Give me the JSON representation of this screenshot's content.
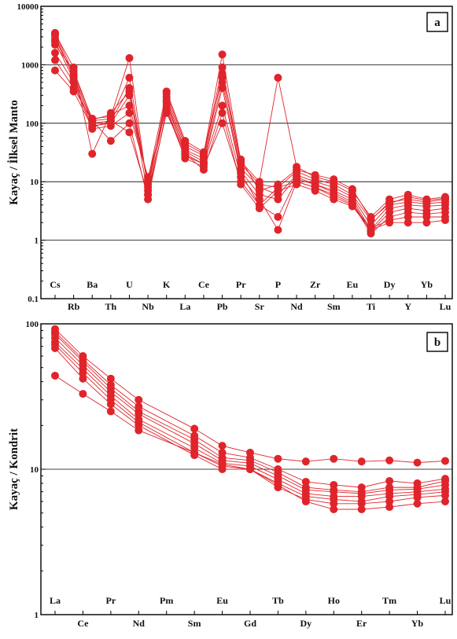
{
  "chart_data": [
    {
      "panel": "a",
      "type": "line",
      "ylabel": "Kayaç / İlksel Manto",
      "yscale": "log",
      "ylim": [
        0.1,
        10000
      ],
      "yticks": [
        "0.1",
        "1",
        "10",
        "100",
        "1000",
        "10000"
      ],
      "grid_y": [
        1,
        10,
        100,
        1000
      ],
      "color": "#e0242b",
      "categories": [
        "Cs",
        "Rb",
        "Ba",
        "Th",
        "U",
        "Nb",
        "K",
        "La",
        "Ce",
        "Pb",
        "Pr",
        "Sr",
        "P",
        "Nd",
        "Zr",
        "Sm",
        "Eu",
        "Ti",
        "Dy",
        "Y",
        "Yb",
        "Lu"
      ],
      "series": [
        {
          "values": [
            3500,
            700,
            120,
            130,
            1300,
            7,
            320,
            45,
            30,
            1500,
            22,
            10,
            600,
            18,
            12,
            10,
            7,
            2.5,
            5,
            6,
            5,
            5.5
          ]
        },
        {
          "values": [
            3200,
            600,
            110,
            120,
            600,
            8,
            280,
            40,
            28,
            900,
            20,
            9,
            8,
            15,
            11,
            9,
            6,
            2.2,
            4.5,
            5,
            4.5,
            5
          ]
        },
        {
          "values": [
            2800,
            650,
            100,
            110,
            400,
            9,
            250,
            35,
            25,
            700,
            17,
            8,
            6,
            13,
            10,
            8,
            5.5,
            1.8,
            4,
            4.5,
            4.2,
            4.5
          ]
        },
        {
          "values": [
            2500,
            550,
            90,
            100,
            300,
            10,
            200,
            33,
            22,
            500,
            15,
            6,
            5,
            12,
            9,
            7,
            5,
            1.5,
            3.5,
            4,
            3.8,
            4
          ]
        },
        {
          "values": [
            3400,
            900,
            30,
            150,
            350,
            6,
            230,
            30,
            20,
            400,
            14,
            4,
            2.5,
            11,
            9,
            6.5,
            4.5,
            1.4,
            3,
            3.5,
            3.2,
            3.5
          ]
        },
        {
          "values": [
            1600,
            500,
            80,
            90,
            150,
            12,
            180,
            28,
            20,
            200,
            12,
            5,
            1.5,
            10,
            8,
            6,
            4.2,
            1.3,
            2.5,
            3,
            2.8,
            3
          ]
        },
        {
          "values": [
            1200,
            400,
            110,
            50,
            100,
            5,
            170,
            25,
            18,
            100,
            10,
            4,
            8,
            10,
            8,
            5.5,
            4,
            1.6,
            2.2,
            2.5,
            2.5,
            2.5
          ]
        },
        {
          "values": [
            800,
            350,
            85,
            110,
            70,
            6,
            150,
            30,
            16,
            150,
            9,
            3.5,
            7,
            9,
            7,
            5,
            3.8,
            1.5,
            2,
            2,
            2,
            2.2
          ]
        },
        {
          "values": [
            2200,
            800,
            115,
            140,
            200,
            11,
            350,
            50,
            32,
            600,
            24,
            7,
            9,
            16,
            13,
            11,
            7.5,
            2.3,
            4.2,
            5.5,
            4.8,
            5.2
          ]
        }
      ],
      "label": "a"
    },
    {
      "panel": "b",
      "type": "line",
      "ylabel": "Kayaç / Kondrit",
      "yscale": "log",
      "ylim": [
        1,
        100
      ],
      "yticks": [
        "1",
        "10",
        "100"
      ],
      "grid_y": [
        10
      ],
      "color": "#e0242b",
      "categories": [
        "La",
        "Ce",
        "Pr",
        "Nd",
        "Pm",
        "Sm",
        "Eu",
        "Gd",
        "Tb",
        "Dy",
        "Ho",
        "Er",
        "Tm",
        "Yb",
        "Lu"
      ],
      "series": [
        {
          "values": [
            92,
            60,
            42,
            30,
            null,
            19,
            14.5,
            13,
            11.8,
            11.3,
            11.8,
            11.3,
            11.5,
            11.1,
            11.4
          ]
        },
        {
          "values": [
            88,
            57,
            38,
            27,
            null,
            17,
            13,
            12,
            10,
            8.2,
            7.8,
            7.5,
            8.3,
            8.0,
            8.6
          ]
        },
        {
          "values": [
            85,
            55,
            36,
            25,
            null,
            16,
            12,
            11.5,
            9.5,
            7.5,
            7.2,
            7.0,
            7.5,
            7.5,
            8.3
          ]
        },
        {
          "values": [
            80,
            52,
            34,
            24,
            null,
            15,
            11.5,
            11,
            9,
            7.2,
            7.0,
            6.8,
            7.2,
            7.3,
            7.8
          ]
        },
        {
          "values": [
            75,
            49,
            32,
            22,
            null,
            14,
            11,
            10.5,
            8.5,
            6.8,
            6.5,
            6.5,
            6.8,
            7.0,
            7.3
          ]
        },
        {
          "values": [
            72,
            46,
            30,
            21,
            null,
            13,
            10.5,
            10,
            8,
            6.5,
            6.2,
            6.0,
            6.5,
            6.7,
            7.0
          ]
        },
        {
          "values": [
            68,
            42,
            28,
            20,
            null,
            12.5,
            10,
            10,
            7.5,
            6.2,
            5.8,
            5.8,
            6.0,
            6.4,
            6.6
          ]
        },
        {
          "values": [
            44,
            33,
            25,
            18.5,
            null,
            13,
            10.8,
            10,
            7.8,
            6.0,
            5.3,
            5.3,
            5.5,
            5.8,
            6.0
          ]
        }
      ],
      "label": "b"
    }
  ]
}
